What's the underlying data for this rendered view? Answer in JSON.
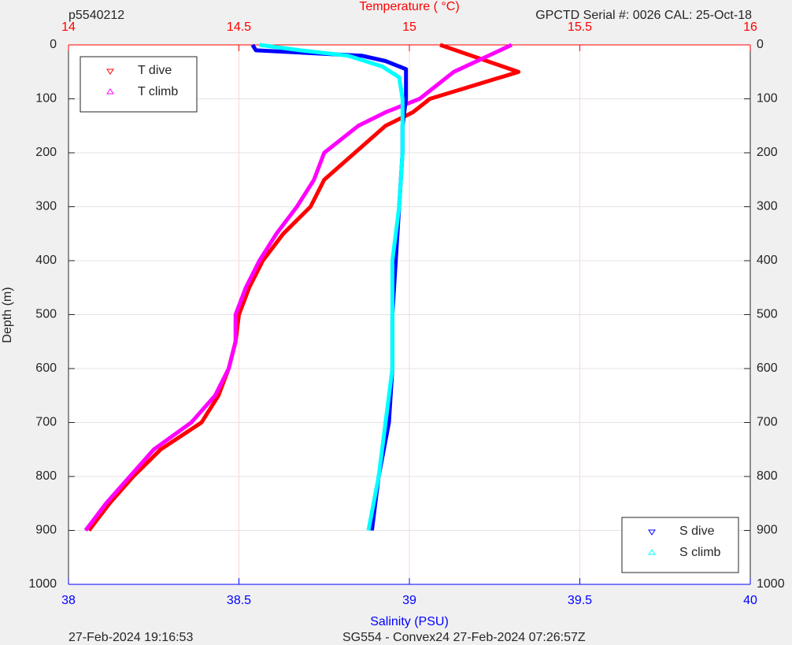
{
  "chart_data": {
    "type": "profile",
    "title": "p5540212",
    "subtitle": "GPCTD Serial #: 0026 CAL: 25-Oct-18",
    "x2label": "Temperature (    °C)",
    "xlabel": "Salinity (PSU)",
    "ylabel": "Depth (m)",
    "footer_left": "27-Feb-2024 19:16:53",
    "footer_center": "SG554 - Convex24 27-Feb-2024 07:26:57Z",
    "ylim": [
      0,
      1000
    ],
    "y_reversed": true,
    "yticks": [
      0,
      100,
      200,
      300,
      400,
      500,
      600,
      700,
      800,
      900,
      1000
    ],
    "xlim": [
      38,
      40
    ],
    "xticks": [
      38,
      38.5,
      39,
      39.5,
      40
    ],
    "x_color": "#0000ff",
    "x2lim": [
      14,
      16
    ],
    "x2ticks": [
      14,
      14.5,
      15,
      15.5,
      16
    ],
    "x2_color": "#ff0000",
    "grid": true,
    "legend_corners": {
      "x2": "upper left",
      "x": "lower right"
    },
    "series": [
      {
        "name": "T dive",
        "color": "#ff0000",
        "axis": "x2",
        "marker": "down",
        "y": [
          0,
          50,
          100,
          125,
          150,
          200,
          250,
          300,
          350,
          400,
          450,
          500,
          550,
          600,
          650,
          700,
          750,
          800,
          850,
          900
        ],
        "x": [
          15.09,
          15.32,
          15.06,
          15.01,
          14.93,
          14.84,
          14.75,
          14.71,
          14.63,
          14.57,
          14.53,
          14.5,
          14.49,
          14.47,
          14.44,
          14.39,
          14.27,
          14.19,
          14.12,
          14.06
        ]
      },
      {
        "name": "T climb",
        "color": "#ff00ff",
        "axis": "x2",
        "marker": "up",
        "y": [
          0,
          50,
          100,
          125,
          150,
          200,
          250,
          300,
          350,
          400,
          450,
          500,
          550,
          600,
          650,
          700,
          750,
          800,
          850,
          900
        ],
        "x": [
          15.3,
          15.13,
          15.03,
          14.93,
          14.85,
          14.75,
          14.72,
          14.67,
          14.61,
          14.56,
          14.52,
          14.49,
          14.49,
          14.47,
          14.43,
          14.36,
          14.25,
          14.18,
          14.11,
          14.05
        ]
      },
      {
        "name": "S dive",
        "color": "#0000ff",
        "axis": "x",
        "marker": "down",
        "y": [
          0,
          10,
          20,
          30,
          45,
          100,
          150,
          200,
          300,
          400,
          500,
          600,
          700,
          800,
          900
        ],
        "x": [
          38.54,
          38.55,
          38.86,
          38.93,
          38.99,
          38.99,
          38.98,
          38.98,
          38.97,
          38.96,
          38.95,
          38.95,
          38.94,
          38.91,
          38.89
        ]
      },
      {
        "name": "S climb",
        "color": "#00ffff",
        "axis": "x",
        "marker": "up",
        "y": [
          0,
          10,
          20,
          40,
          60,
          100,
          200,
          300,
          400,
          500,
          600,
          700,
          800,
          900
        ],
        "x": [
          38.56,
          38.68,
          38.82,
          38.92,
          38.97,
          38.98,
          38.98,
          38.97,
          38.95,
          38.95,
          38.95,
          38.93,
          38.91,
          38.88
        ]
      }
    ]
  }
}
